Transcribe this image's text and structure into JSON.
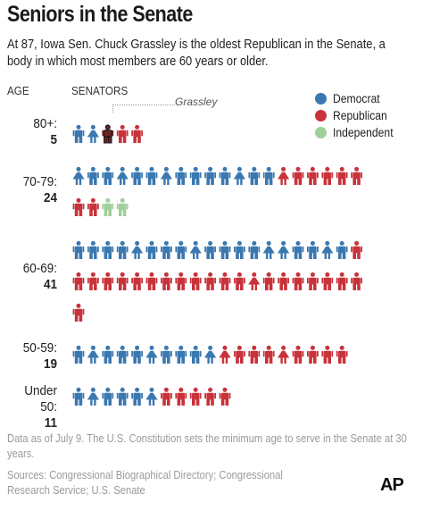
{
  "title": "Seniors in the Senate",
  "subtitle": "At 87, Iowa Sen. Chuck Grassley is the oldest Republican in the Senate, a body in which most members are 60 years or older.",
  "headers": {
    "age": "AGE",
    "senators": "SENATORS"
  },
  "callout": "Grassley",
  "legend": [
    {
      "label": "Democrat",
      "color": "#3a78b0"
    },
    {
      "label": "Republican",
      "color": "#c8323a"
    },
    {
      "label": "Independent",
      "color": "#9fcf9a"
    }
  ],
  "groups": [
    {
      "range": "80+:",
      "count": "5"
    },
    {
      "range": "70-79:",
      "count": "24"
    },
    {
      "range": "60-69:",
      "count": "41"
    },
    {
      "range": "50-59:",
      "count": "19"
    },
    {
      "range": "Under 50:",
      "count": "11"
    }
  ],
  "chart_data": {
    "type": "bar",
    "title": "Seniors in the Senate",
    "categories": [
      "80+",
      "70-79",
      "60-69",
      "50-59",
      "Under 50"
    ],
    "series": [
      {
        "name": "Democrat",
        "values": [
          2,
          14,
          19,
          10,
          6
        ]
      },
      {
        "name": "Republican",
        "values": [
          3,
          8,
          22,
          9,
          5
        ]
      },
      {
        "name": "Independent",
        "values": [
          0,
          2,
          0,
          0,
          0
        ]
      }
    ],
    "totals": [
      5,
      24,
      41,
      19,
      11
    ],
    "highlight": {
      "group": "80+",
      "party": "Republican",
      "label": "Grassley"
    },
    "colors": {
      "dem": "#3a78b0",
      "rep": "#c8323a",
      "ind": "#9fcf9a",
      "highlight": "#6e2224"
    },
    "figures": [
      [
        "D-m",
        "D-f",
        "R-h",
        "R-m",
        "R-m"
      ],
      [
        "D-f",
        "D-m",
        "D-m",
        "D-f",
        "D-m",
        "D-m",
        "D-f",
        "D-m",
        "D-m",
        "D-m",
        "D-m",
        "D-f",
        "D-m",
        "D-m",
        "R-f",
        "R-m",
        "R-m",
        "R-m",
        "R-m",
        "R-m",
        "R-m",
        "R-m",
        "I-m",
        "I-m"
      ],
      [
        "D-m",
        "D-m",
        "D-m",
        "D-m",
        "D-f",
        "D-m",
        "D-m",
        "D-m",
        "D-f",
        "D-m",
        "D-m",
        "D-m",
        "D-m",
        "D-f",
        "D-f",
        "D-m",
        "D-m",
        "D-f",
        "D-m",
        "R-m",
        "R-m",
        "R-m",
        "R-m",
        "R-m",
        "R-m",
        "R-m",
        "R-m",
        "R-m",
        "R-m",
        "R-m",
        "R-m",
        "R-m",
        "R-f",
        "R-m",
        "R-m",
        "R-m",
        "R-m",
        "R-m",
        "R-m",
        "R-m",
        "R-m"
      ],
      [
        "D-m",
        "D-f",
        "D-m",
        "D-m",
        "D-m",
        "D-f",
        "D-m",
        "D-m",
        "D-m",
        "D-f",
        "R-f",
        "R-m",
        "R-m",
        "R-m",
        "R-f",
        "R-m",
        "R-m",
        "R-m",
        "R-m"
      ],
      [
        "D-m",
        "D-f",
        "D-m",
        "D-m",
        "D-m",
        "D-f",
        "R-m",
        "R-m",
        "R-m",
        "R-m",
        "R-m"
      ]
    ]
  },
  "footnote": "Data as of July 9. The U.S. Constitution sets the minimum age to serve in the Senate at 30 years.",
  "sources": "Sources: Congressional Biographical Directory; Congressional Research Service; U.S. Senate",
  "logo": "AP"
}
